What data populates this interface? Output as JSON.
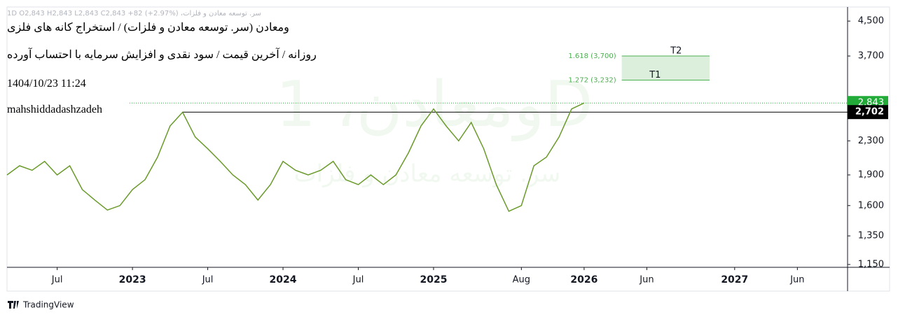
{
  "chart_data": {
    "type": "line",
    "log_scale": true,
    "ohlc_line": "سر. توسعه معادن و فلزات، 1D  O2,843  H2,843  L2,843  C2,843  +82 (+2.97%)",
    "title": "ومعادن (سر. توسعه معادن و فلزات) / استخراج کانه های فلزی",
    "subtitle": "روزانه / آخرین قیمت / سود نقدی و افزایش سرمایه با احتساب آورده",
    "timestamp": "1404/10/23 11:24",
    "author": "mahshiddadashzadeh",
    "watermark": "ومعادن، 1D",
    "watermark_sub": "سر. توسعه معادن و فلزات",
    "x": [
      "2022-03",
      "2022-04",
      "2022-05",
      "2022-06",
      "2022-07",
      "2022-08",
      "2022-09",
      "2022-10",
      "2022-11",
      "2022-12",
      "2023-01",
      "2023-02",
      "2023-03",
      "2023-04",
      "2023-05",
      "2023-06",
      "2023-07",
      "2023-08",
      "2023-09",
      "2023-10",
      "2023-11",
      "2023-12",
      "2024-01",
      "2024-02",
      "2024-03",
      "2024-04",
      "2024-05",
      "2024-06",
      "2024-07",
      "2024-08",
      "2024-09",
      "2024-10",
      "2024-11",
      "2024-12",
      "2025-01",
      "2025-02",
      "2025-03",
      "2025-04",
      "2025-05",
      "2025-06",
      "2025-07",
      "2025-08",
      "2025-09",
      "2025-10",
      "2025-11",
      "2025-12",
      "2026-01"
    ],
    "series": [
      {
        "color": "#6a9a2a",
        "values": [
          1900,
          2000,
          1950,
          2050,
          1900,
          2000,
          1750,
          1650,
          1560,
          1600,
          1750,
          1850,
          2100,
          2500,
          2700,
          2350,
          2200,
          2050,
          1900,
          1800,
          1650,
          1800,
          2050,
          1950,
          1900,
          1950,
          2050,
          1850,
          1800,
          1900,
          1800,
          1900,
          2150,
          2500,
          2750,
          2500,
          2300,
          2550,
          2200,
          1800,
          1550,
          1600,
          2000,
          2100,
          2350,
          2750,
          2843
        ]
      }
    ],
    "xlim": [
      "2022-03",
      "2027-10"
    ],
    "xticks": [
      {
        "value": "2022-07",
        "label": "Jul"
      },
      {
        "value": "2023-01",
        "label": "2023"
      },
      {
        "value": "2023-07",
        "label": "Jul"
      },
      {
        "value": "2024-01",
        "label": "2024"
      },
      {
        "value": "2024-07",
        "label": "Jul"
      },
      {
        "value": "2025-01",
        "label": "2025"
      },
      {
        "value": "2025-08",
        "label": "Aug"
      },
      {
        "value": "2026-01",
        "label": "2026"
      },
      {
        "value": "2026-06",
        "label": "Jun"
      },
      {
        "value": "2027-01",
        "label": "2027"
      },
      {
        "value": "2027-06",
        "label": "Jun"
      }
    ],
    "ylim": [
      1132,
      4870
    ],
    "yticks": [
      {
        "value": 1150,
        "label": "1,150"
      },
      {
        "value": 1350,
        "label": "1,350"
      },
      {
        "value": 1600,
        "label": "1,600"
      },
      {
        "value": 1900,
        "label": "1,900"
      },
      {
        "value": 2300,
        "label": "2,300"
      },
      {
        "value": 3700,
        "label": "3,700"
      },
      {
        "value": 4500,
        "label": "4,500"
      }
    ],
    "last_price": {
      "value": 2843,
      "label": "2,843",
      "color": "#22ab39"
    },
    "reference_line": {
      "value": 2702,
      "label": "2,702",
      "start": "2023-05",
      "color": "#000000"
    },
    "targets": {
      "start": "2026-04",
      "end": "2026-11",
      "color": "#4caf50",
      "levels": [
        {
          "name": "T1",
          "label": "1.272 (3,232)",
          "value": 3232
        },
        {
          "name": "T2",
          "label": "1.618 (3,700)",
          "value": 3700
        }
      ]
    },
    "brand": "TradingView"
  }
}
